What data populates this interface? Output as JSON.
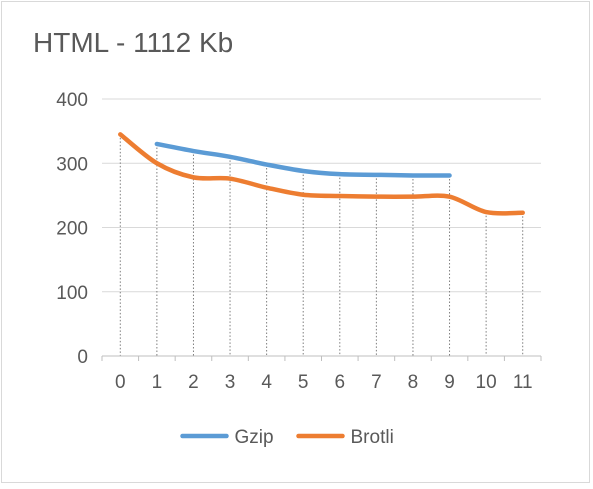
{
  "chart_data": {
    "type": "line",
    "title": "HTML - 1112 Kb",
    "xlabel": "",
    "ylabel": "",
    "x": [
      0,
      1,
      2,
      3,
      4,
      5,
      6,
      7,
      8,
      9,
      10,
      11
    ],
    "xticks": [
      "0",
      "1",
      "2",
      "3",
      "4",
      "5",
      "6",
      "7",
      "8",
      "9",
      "10",
      "11"
    ],
    "ylim": [
      0,
      400
    ],
    "yticks": [
      "0",
      "100",
      "200",
      "300",
      "400"
    ],
    "ytick_values": [
      0,
      100,
      200,
      300,
      400
    ],
    "grid": true,
    "legend_position": "bottom",
    "series": [
      {
        "name": "Gzip",
        "color": "#5b9bd5",
        "x": [
          1,
          2,
          3,
          4,
          5,
          6,
          7,
          8,
          9
        ],
        "values": [
          330,
          319,
          310,
          298,
          288,
          283,
          282,
          281,
          281
        ]
      },
      {
        "name": "Brotli",
        "color": "#ed7d31",
        "x": [
          0,
          1,
          2,
          3,
          4,
          5,
          6,
          7,
          8,
          9,
          10,
          11
        ],
        "values": [
          345,
          300,
          278,
          276,
          262,
          251,
          249,
          248,
          248,
          248,
          224,
          223
        ]
      }
    ]
  }
}
